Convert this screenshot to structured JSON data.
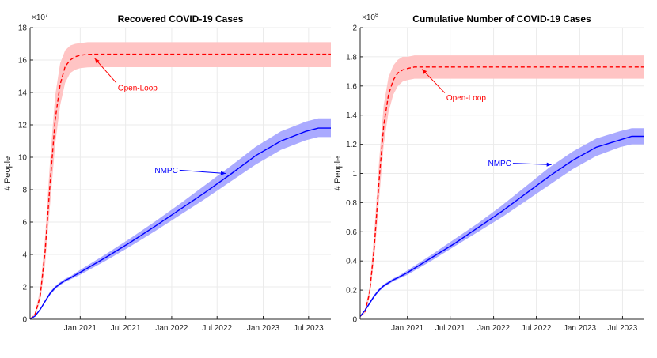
{
  "chart_data": [
    {
      "type": "line",
      "title": "Recovered COVID-19 Cases",
      "xlabel": "",
      "ylabel": "# People",
      "exponent_base": "×10",
      "exponent_power": "7",
      "ylim": [
        0,
        18
      ],
      "yticks": [
        0,
        2,
        4,
        6,
        8,
        10,
        12,
        14,
        16,
        18
      ],
      "xlim": [
        0,
        1200
      ],
      "xticks": [
        {
          "label": "Jan 2021",
          "t": 200
        },
        {
          "label": "Jul 2021",
          "t": 381
        },
        {
          "label": "Jan 2022",
          "t": 565
        },
        {
          "label": "Jul 2022",
          "t": 746
        },
        {
          "label": "Jan 2023",
          "t": 930
        },
        {
          "label": "Jul 2023",
          "t": 1111
        }
      ],
      "series": [
        {
          "name": "Open-Loop",
          "style": "dashed",
          "color": "#ff0000",
          "band_color": "#ffc4c4",
          "t": [
            0,
            20,
            40,
            60,
            80,
            100,
            120,
            140,
            160,
            180,
            200,
            230,
            260,
            300,
            400,
            600,
            800,
            1000,
            1150
          ],
          "mean": [
            0,
            0.3,
            1.4,
            4.2,
            8.4,
            12.3,
            14.5,
            15.6,
            16.0,
            16.2,
            16.3,
            16.35,
            16.36,
            16.36,
            16.36,
            16.36,
            16.36,
            16.36,
            16.36
          ],
          "lower": [
            0,
            0.2,
            1.1,
            3.4,
            7.1,
            10.8,
            13.2,
            14.6,
            15.2,
            15.4,
            15.5,
            15.55,
            15.56,
            15.56,
            15.56,
            15.56,
            15.56,
            15.56,
            15.56
          ],
          "upper": [
            0,
            0.4,
            1.8,
            5.1,
            9.8,
            13.8,
            15.8,
            16.6,
            16.9,
            17.0,
            17.05,
            17.1,
            17.1,
            17.1,
            17.1,
            17.1,
            17.1,
            17.1,
            17.1
          ]
        },
        {
          "name": "NMPC",
          "style": "solid",
          "color": "#0000ff",
          "band_color": "#aaaaff",
          "t": [
            0,
            20,
            40,
            60,
            80,
            100,
            120,
            140,
            160,
            200,
            300,
            400,
            500,
            600,
            700,
            800,
            900,
            1000,
            1100,
            1150
          ],
          "mean": [
            0,
            0.2,
            0.6,
            1.1,
            1.6,
            1.95,
            2.2,
            2.4,
            2.55,
            2.9,
            3.8,
            4.75,
            5.75,
            6.8,
            7.85,
            8.95,
            10.1,
            11.0,
            11.6,
            11.8
          ],
          "lower": [
            0,
            0.2,
            0.55,
            1.05,
            1.5,
            1.85,
            2.1,
            2.3,
            2.45,
            2.75,
            3.6,
            4.5,
            5.45,
            6.45,
            7.45,
            8.5,
            9.55,
            10.45,
            11.05,
            11.25
          ],
          "upper": [
            0,
            0.25,
            0.65,
            1.2,
            1.7,
            2.05,
            2.3,
            2.5,
            2.65,
            3.05,
            4.0,
            5.0,
            6.05,
            7.15,
            8.3,
            9.45,
            10.65,
            11.6,
            12.2,
            12.4
          ]
        }
      ],
      "annotations": [
        {
          "text": "Open-Loop",
          "series": "Open-Loop",
          "points_to_t": 258,
          "points_to_y": 16.1,
          "text_t": 350,
          "text_y": 14.3
        },
        {
          "text": "NMPC",
          "series": "NMPC",
          "points_to_t": 780,
          "points_to_y": 9.0,
          "text_t": 590,
          "text_y": 9.2
        }
      ]
    },
    {
      "type": "line",
      "title": "Cumulative Number of COVID-19 Cases",
      "xlabel": "",
      "ylabel": "# People",
      "exponent_base": "×10",
      "exponent_power": "8",
      "ylim": [
        0,
        2
      ],
      "yticks": [
        0,
        0.2,
        0.4,
        0.6,
        0.8,
        1,
        1.2,
        1.4,
        1.6,
        1.8,
        2
      ],
      "ytick_labels": [
        "0",
        "0.2",
        "0.4",
        "0.6",
        "0.8",
        "1",
        "1.2",
        "1.4",
        "1.6",
        "1.8",
        "2"
      ],
      "xlim": [
        0,
        1200
      ],
      "xticks": [
        {
          "label": "Jan 2021",
          "t": 200
        },
        {
          "label": "Jul 2021",
          "t": 381
        },
        {
          "label": "Jan 2022",
          "t": 565
        },
        {
          "label": "Jul 2022",
          "t": 746
        },
        {
          "label": "Jan 2023",
          "t": 930
        },
        {
          "label": "Jul 2023",
          "t": 1111
        }
      ],
      "series": [
        {
          "name": "Open-Loop",
          "style": "dashed",
          "color": "#ff0000",
          "band_color": "#ffc4c4",
          "t": [
            0,
            20,
            40,
            60,
            80,
            100,
            120,
            140,
            160,
            180,
            200,
            230,
            260,
            300,
            400,
            600,
            800,
            1000,
            1150
          ],
          "mean": [
            0.02,
            0.05,
            0.18,
            0.5,
            0.95,
            1.33,
            1.54,
            1.64,
            1.69,
            1.71,
            1.72,
            1.73,
            1.73,
            1.73,
            1.73,
            1.73,
            1.73,
            1.73,
            1.73
          ],
          "lower": [
            0.02,
            0.04,
            0.15,
            0.42,
            0.82,
            1.2,
            1.42,
            1.54,
            1.6,
            1.63,
            1.64,
            1.65,
            1.65,
            1.65,
            1.65,
            1.65,
            1.65,
            1.65,
            1.65
          ],
          "upper": [
            0.02,
            0.06,
            0.22,
            0.6,
            1.08,
            1.47,
            1.66,
            1.74,
            1.78,
            1.8,
            1.8,
            1.81,
            1.81,
            1.81,
            1.81,
            1.81,
            1.81,
            1.81,
            1.81
          ]
        },
        {
          "name": "NMPC",
          "style": "solid",
          "color": "#0000ff",
          "band_color": "#aaaaff",
          "t": [
            0,
            20,
            40,
            60,
            80,
            100,
            120,
            140,
            160,
            200,
            300,
            400,
            500,
            600,
            700,
            800,
            900,
            1000,
            1100,
            1150
          ],
          "mean": [
            0.02,
            0.06,
            0.11,
            0.16,
            0.2,
            0.23,
            0.25,
            0.27,
            0.285,
            0.32,
            0.42,
            0.52,
            0.63,
            0.74,
            0.86,
            0.98,
            1.09,
            1.18,
            1.23,
            1.255
          ],
          "lower": [
            0.02,
            0.055,
            0.1,
            0.15,
            0.19,
            0.22,
            0.24,
            0.26,
            0.275,
            0.305,
            0.4,
            0.5,
            0.6,
            0.7,
            0.81,
            0.92,
            1.03,
            1.12,
            1.18,
            1.2
          ],
          "upper": [
            0.02,
            0.065,
            0.12,
            0.17,
            0.21,
            0.24,
            0.26,
            0.28,
            0.295,
            0.335,
            0.44,
            0.55,
            0.66,
            0.78,
            0.91,
            1.04,
            1.15,
            1.24,
            1.29,
            1.31
          ]
        }
      ],
      "annotations": [
        {
          "text": "Open-Loop",
          "series": "Open-Loop",
          "points_to_t": 262,
          "points_to_y": 1.715,
          "text_t": 365,
          "text_y": 1.52
        },
        {
          "text": "NMPC",
          "series": "NMPC",
          "points_to_t": 810,
          "points_to_y": 1.06,
          "text_t": 640,
          "text_y": 1.07
        }
      ]
    }
  ]
}
